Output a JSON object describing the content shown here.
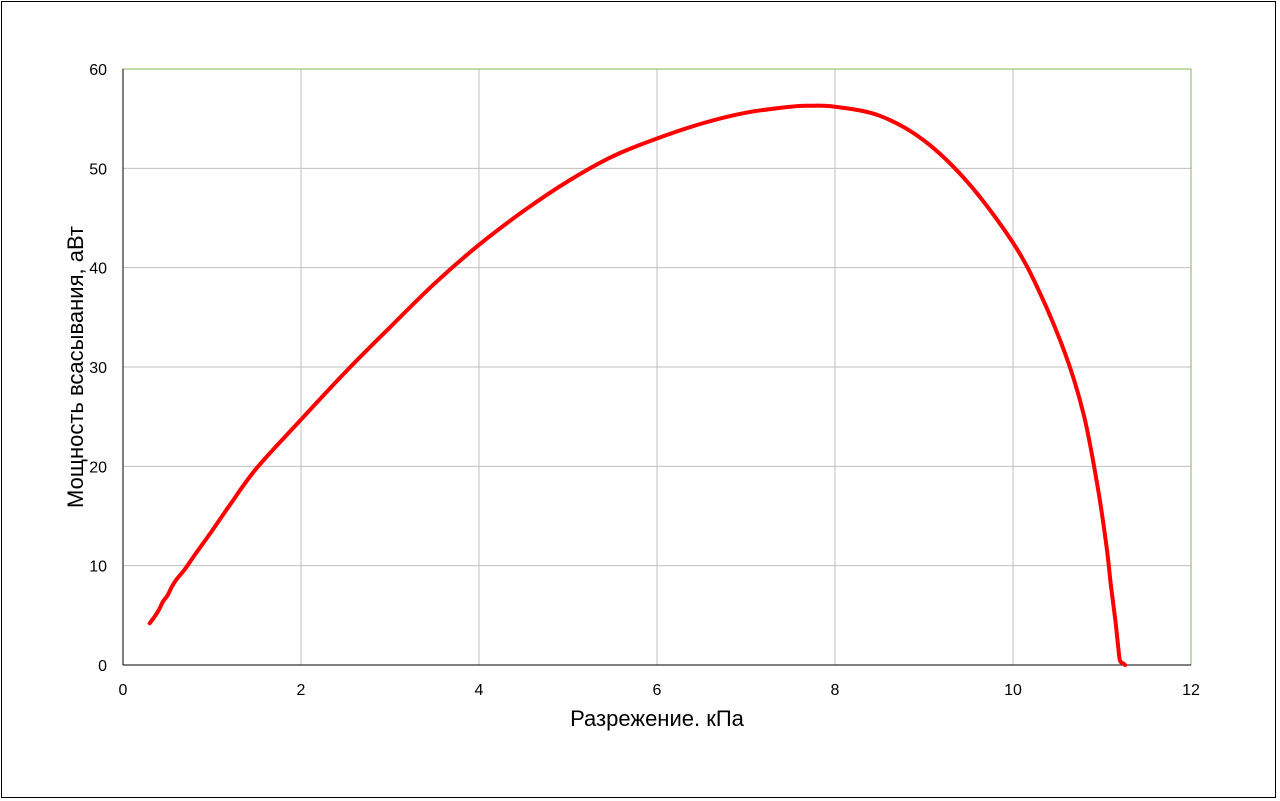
{
  "chart_data": {
    "type": "line",
    "title": "",
    "xlabel": "Разрежение. кПа",
    "ylabel": "Мощность всасывания, аВт",
    "xlim": [
      0,
      12
    ],
    "ylim": [
      0,
      60
    ],
    "x_ticks": [
      "0",
      "2",
      "4",
      "6",
      "8",
      "10",
      "12"
    ],
    "y_ticks": [
      "0",
      "10",
      "20",
      "30",
      "40",
      "50",
      "60"
    ],
    "grid": true,
    "legend": "none",
    "colors": {
      "series": "#ff0000",
      "grid": "#c0c0c0",
      "plot_border": "#8db255",
      "axis": "#000000"
    },
    "series": [
      {
        "x": [
          0.3,
          0.35,
          0.4,
          0.45,
          0.5,
          0.55,
          0.6,
          0.7,
          0.8,
          1.0,
          1.2,
          1.5,
          2.0,
          2.5,
          3.0,
          3.5,
          4.0,
          4.5,
          5.0,
          5.5,
          6.0,
          6.5,
          7.0,
          7.5,
          7.7,
          8.0,
          8.5,
          9.0,
          9.5,
          10.0,
          10.3,
          10.6,
          10.8,
          10.95,
          11.05,
          11.1,
          11.15,
          11.18,
          11.2,
          11.23,
          11.26
        ],
        "y": [
          4.2,
          4.8,
          5.5,
          6.4,
          7.0,
          7.9,
          8.6,
          9.7,
          11.0,
          13.5,
          16.1,
          19.8,
          24.7,
          29.5,
          34.0,
          38.4,
          42.3,
          45.7,
          48.7,
          51.2,
          53.0,
          54.5,
          55.6,
          56.2,
          56.3,
          56.2,
          55.3,
          52.8,
          48.5,
          42.5,
          37.5,
          31.0,
          25.0,
          18.0,
          12.0,
          8.0,
          4.5,
          2.0,
          0.5,
          0.2,
          0.0
        ]
      }
    ]
  }
}
